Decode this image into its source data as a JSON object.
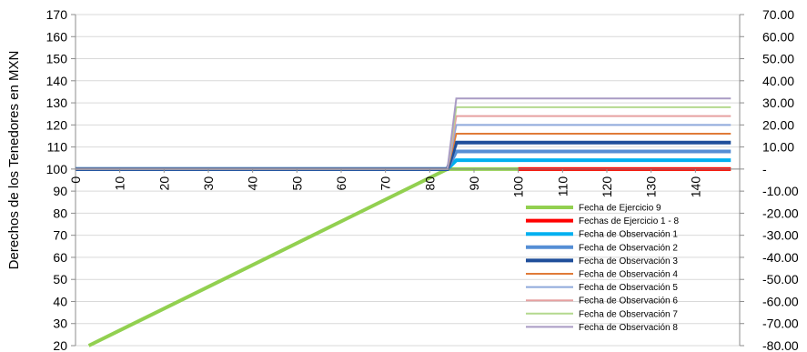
{
  "chart_data": {
    "type": "line",
    "title": "",
    "xlabel": "",
    "ylabel": "Derechos de los Tenedores en MXN",
    "ylim": [
      20,
      170
    ],
    "y2lim": [
      -80,
      70
    ],
    "xlim": [
      0,
      150
    ],
    "grid": true,
    "legend_placement": "bottom-right, inside plot",
    "x_ticks": [
      "0",
      "10",
      "20",
      "30",
      "40",
      "50",
      "60",
      "70",
      "80",
      "90",
      "100",
      "110",
      "120",
      "130",
      "140"
    ],
    "y_ticks": [
      "20",
      "30",
      "40",
      "50",
      "60",
      "70",
      "80",
      "90",
      "100",
      "110",
      "120",
      "130",
      "140",
      "150",
      "160",
      "170"
    ],
    "y2_ticks": [
      "-80.00",
      "-70.00",
      "-60.00",
      "-50.00",
      "-40.00",
      "-30.00",
      "-20.00",
      "-10.00",
      "-",
      "10.00",
      "20.00",
      "30.00",
      "40.00",
      "50.00",
      "60.00",
      "70.00"
    ],
    "series": [
      {
        "name": "Fecha de Ejercicio 9",
        "color": "#92D050",
        "width": 4,
        "points": [
          [
            3,
            20
          ],
          [
            84,
            100
          ],
          [
            86,
            100
          ],
          [
            148,
            100
          ]
        ]
      },
      {
        "name": "Fechas de Ejercicio 1 - 8",
        "color": "#FF0000",
        "width": 4,
        "points": [
          [
            100,
            100
          ],
          [
            148,
            100
          ]
        ]
      },
      {
        "name": "Fecha de Observación 1",
        "color": "#00B0F0",
        "width": 4,
        "points": [
          [
            0,
            100
          ],
          [
            84,
            100
          ],
          [
            86,
            104
          ],
          [
            148,
            104
          ]
        ]
      },
      {
        "name": "Fecha de Observación 2",
        "color": "#558ED5",
        "width": 4,
        "points": [
          [
            0,
            100
          ],
          [
            84,
            100
          ],
          [
            86,
            108
          ],
          [
            148,
            108
          ]
        ]
      },
      {
        "name": "Fecha de Observación 3",
        "color": "#1F4E9A",
        "width": 4,
        "points": [
          [
            0,
            100
          ],
          [
            84,
            100
          ],
          [
            86,
            112
          ],
          [
            148,
            112
          ]
        ]
      },
      {
        "name": "Fecha de Observación 4",
        "color": "#E07B39",
        "width": 2,
        "points": [
          [
            0,
            100
          ],
          [
            84,
            100
          ],
          [
            86,
            116
          ],
          [
            148,
            116
          ]
        ]
      },
      {
        "name": "Fecha de Observación 5",
        "color": "#8EA9DB",
        "width": 2,
        "points": [
          [
            0,
            100
          ],
          [
            84,
            100
          ],
          [
            86,
            120
          ],
          [
            148,
            120
          ]
        ]
      },
      {
        "name": "Fecha de Observación 6",
        "color": "#E6A0A0",
        "width": 2,
        "points": [
          [
            0,
            100
          ],
          [
            84,
            100
          ],
          [
            86,
            124
          ],
          [
            148,
            124
          ]
        ]
      },
      {
        "name": "Fecha de Observación 7",
        "color": "#B4D98E",
        "width": 2,
        "points": [
          [
            0,
            100
          ],
          [
            84,
            100
          ],
          [
            86,
            128
          ],
          [
            148,
            128
          ]
        ]
      },
      {
        "name": "Fecha de Observación 8",
        "color": "#A99BC4",
        "width": 2,
        "points": [
          [
            0,
            100
          ],
          [
            84,
            100
          ],
          [
            86,
            132
          ],
          [
            148,
            132
          ]
        ]
      }
    ]
  }
}
